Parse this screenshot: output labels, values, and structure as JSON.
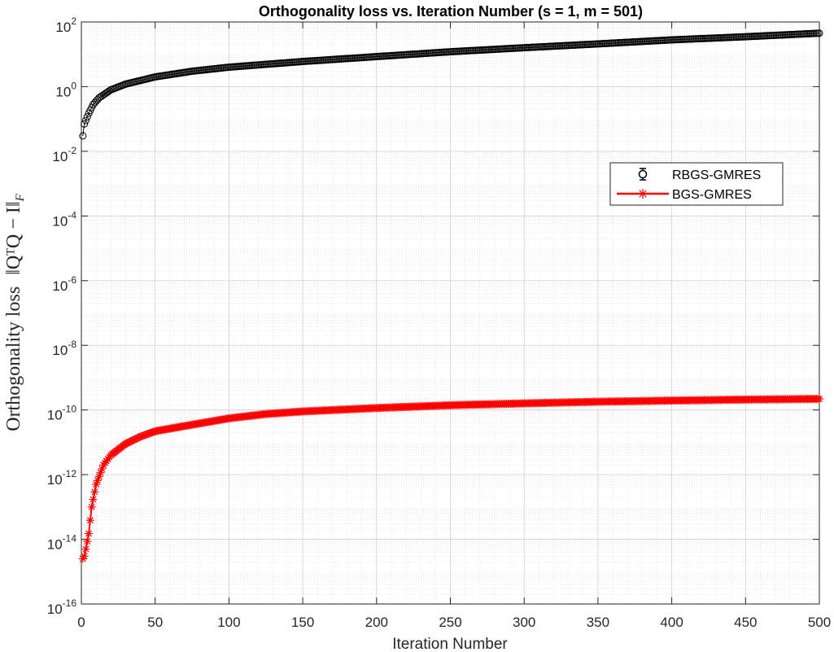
{
  "chart_data": {
    "type": "scatter",
    "title": "Orthogonality loss vs. Iteration Number (s = 1, m = 501)",
    "xlabel": "Iteration Number",
    "ylabel_text": "Orthogonality loss",
    "ylabel_math": "‖QᵀQ − I‖",
    "ylabel_math_sub": "F",
    "xlim": [
      0,
      500
    ],
    "ylim": [
      1e-16,
      100
    ],
    "yscale": "log",
    "grid": true,
    "minor_grid": true,
    "legend_position": "upper-right",
    "x_ticks": [
      0,
      50,
      100,
      150,
      200,
      250,
      300,
      350,
      400,
      450,
      500
    ],
    "y_ticks": [
      {
        "base": "10",
        "exp": "-16",
        "value": 1e-16
      },
      {
        "base": "10",
        "exp": "-14",
        "value": 1e-14
      },
      {
        "base": "10",
        "exp": "-12",
        "value": 1e-12
      },
      {
        "base": "10",
        "exp": "-10",
        "value": 1e-10
      },
      {
        "base": "10",
        "exp": "-8",
        "value": 1e-08
      },
      {
        "base": "10",
        "exp": "-6",
        "value": 1e-06
      },
      {
        "base": "10",
        "exp": "-4",
        "value": 0.0001
      },
      {
        "base": "10",
        "exp": "-2",
        "value": 0.01
      },
      {
        "base": "10",
        "exp": "0",
        "value": 1
      },
      {
        "base": "10",
        "exp": "2",
        "value": 100
      }
    ],
    "series": [
      {
        "name": "RBGS-GMRES",
        "color": "#000000",
        "marker": "circle",
        "anchors": [
          [
            1,
            0.03
          ],
          [
            2,
            0.07
          ],
          [
            3,
            0.09
          ],
          [
            5,
            0.15
          ],
          [
            8,
            0.28
          ],
          [
            12,
            0.45
          ],
          [
            20,
            0.8
          ],
          [
            30,
            1.2
          ],
          [
            50,
            2.0
          ],
          [
            75,
            3.0
          ],
          [
            100,
            4.0
          ],
          [
            150,
            6.0
          ],
          [
            200,
            8.5
          ],
          [
            250,
            12
          ],
          [
            300,
            16
          ],
          [
            350,
            21
          ],
          [
            400,
            28
          ],
          [
            450,
            35
          ],
          [
            500,
            45
          ]
        ]
      },
      {
        "name": "BGS-GMRES",
        "color": "#ff0000",
        "marker": "asterisk",
        "anchors": [
          [
            1,
            2.5e-15
          ],
          [
            2,
            3e-15
          ],
          [
            3,
            5e-15
          ],
          [
            5,
            1.5e-14
          ],
          [
            7,
            1e-13
          ],
          [
            10,
            5e-13
          ],
          [
            15,
            2e-12
          ],
          [
            20,
            4e-12
          ],
          [
            30,
            9e-12
          ],
          [
            40,
            1.5e-11
          ],
          [
            50,
            2.2e-11
          ],
          [
            75,
            3.5e-11
          ],
          [
            100,
            5.5e-11
          ],
          [
            125,
            7.5e-11
          ],
          [
            150,
            9e-11
          ],
          [
            200,
            1.15e-10
          ],
          [
            250,
            1.4e-10
          ],
          [
            300,
            1.6e-10
          ],
          [
            350,
            1.8e-10
          ],
          [
            400,
            1.95e-10
          ],
          [
            450,
            2.1e-10
          ],
          [
            500,
            2.2e-10
          ]
        ]
      }
    ]
  }
}
